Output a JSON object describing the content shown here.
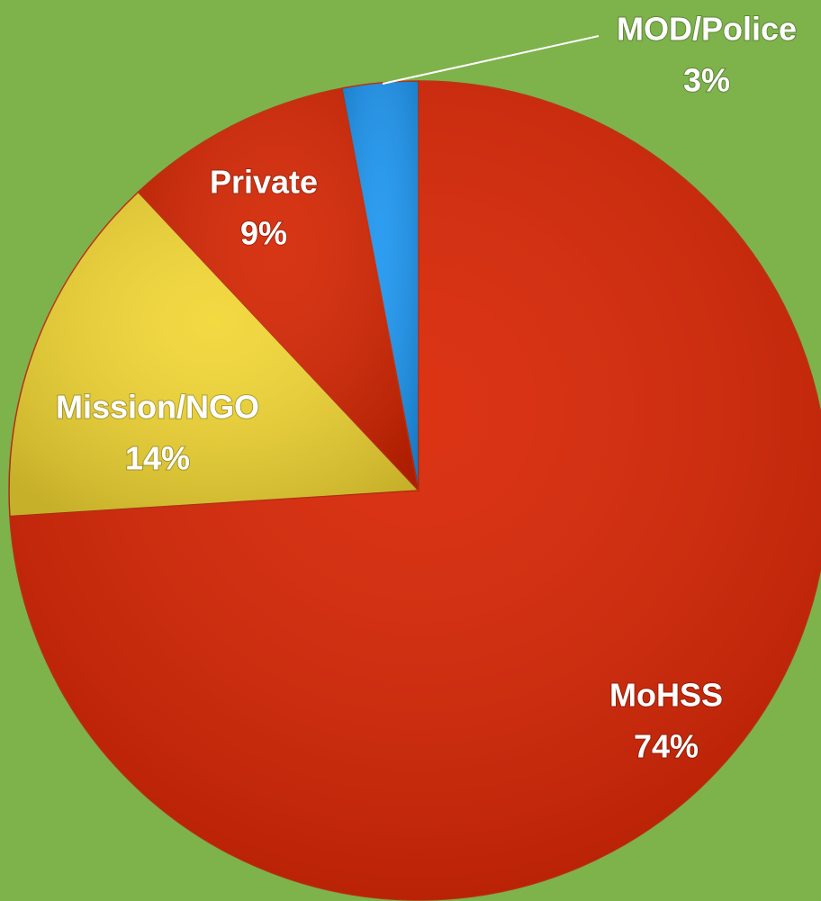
{
  "chart_data": {
    "type": "pie",
    "categories": [
      "MoHSS",
      "Mission/NGO",
      "Private",
      "MOD/Police"
    ],
    "values": [
      74,
      14,
      9,
      3
    ],
    "value_labels": [
      "74%",
      "14%",
      "9%",
      "3%"
    ],
    "colors": [
      "#d82200",
      "#f2d632",
      "#d42400",
      "#1c95f0"
    ]
  }
}
